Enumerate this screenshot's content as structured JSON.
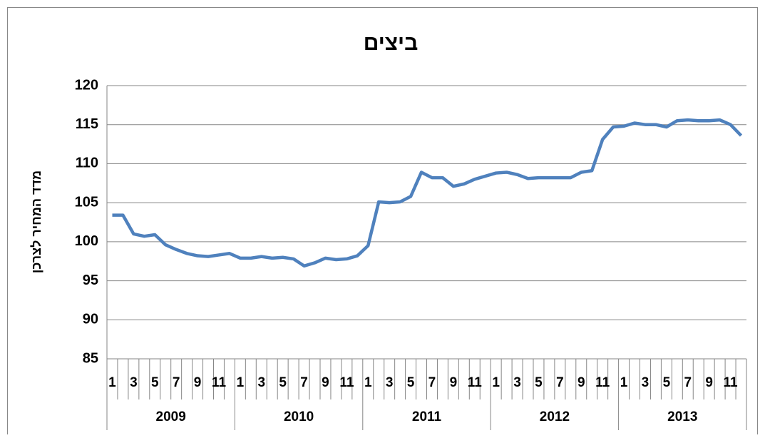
{
  "chart_data": {
    "type": "line",
    "title": "ביצים",
    "ylabel": "מדד המחיר לצרכן",
    "categories": [
      "1",
      null,
      "3",
      null,
      "5",
      null,
      "7",
      null,
      "9",
      null,
      "11",
      null,
      "1",
      null,
      "3",
      null,
      "5",
      null,
      "7",
      null,
      "9",
      null,
      "11",
      null,
      "1",
      null,
      "3",
      null,
      "5",
      null,
      "7",
      null,
      "9",
      null,
      "11",
      null,
      "1",
      null,
      "3",
      null,
      "5",
      null,
      "7",
      null,
      "9",
      null,
      "11",
      null,
      "1",
      null,
      "3",
      null,
      "5",
      null,
      "7",
      null,
      "9",
      null,
      "11",
      null
    ],
    "years": [
      "2009",
      "2010",
      "2011",
      "2012",
      "2013"
    ],
    "series": [
      {
        "color": "#4f81bd",
        "values": [
          103.4,
          103.4,
          101.0,
          100.7,
          100.9,
          99.6,
          99.0,
          98.5,
          98.2,
          98.1,
          98.3,
          98.5,
          97.9,
          97.9,
          98.1,
          97.9,
          98.0,
          97.8,
          96.9,
          97.3,
          97.9,
          97.7,
          97.8,
          98.2,
          99.5,
          105.1,
          105.0,
          105.1,
          105.8,
          108.9,
          108.2,
          108.2,
          107.1,
          107.4,
          108.0,
          108.4,
          108.8,
          108.9,
          108.6,
          108.1,
          108.2,
          108.2,
          108.2,
          108.2,
          108.9,
          109.1,
          113.1,
          114.7,
          114.8,
          115.2,
          115.0,
          115.0,
          114.7,
          115.5,
          115.6,
          115.5,
          115.5,
          115.6,
          115.0,
          113.6
        ]
      }
    ],
    "ylim": [
      85,
      120
    ],
    "yticks": [
      85,
      90,
      95,
      100,
      105,
      110,
      115,
      120
    ],
    "grid": true
  }
}
